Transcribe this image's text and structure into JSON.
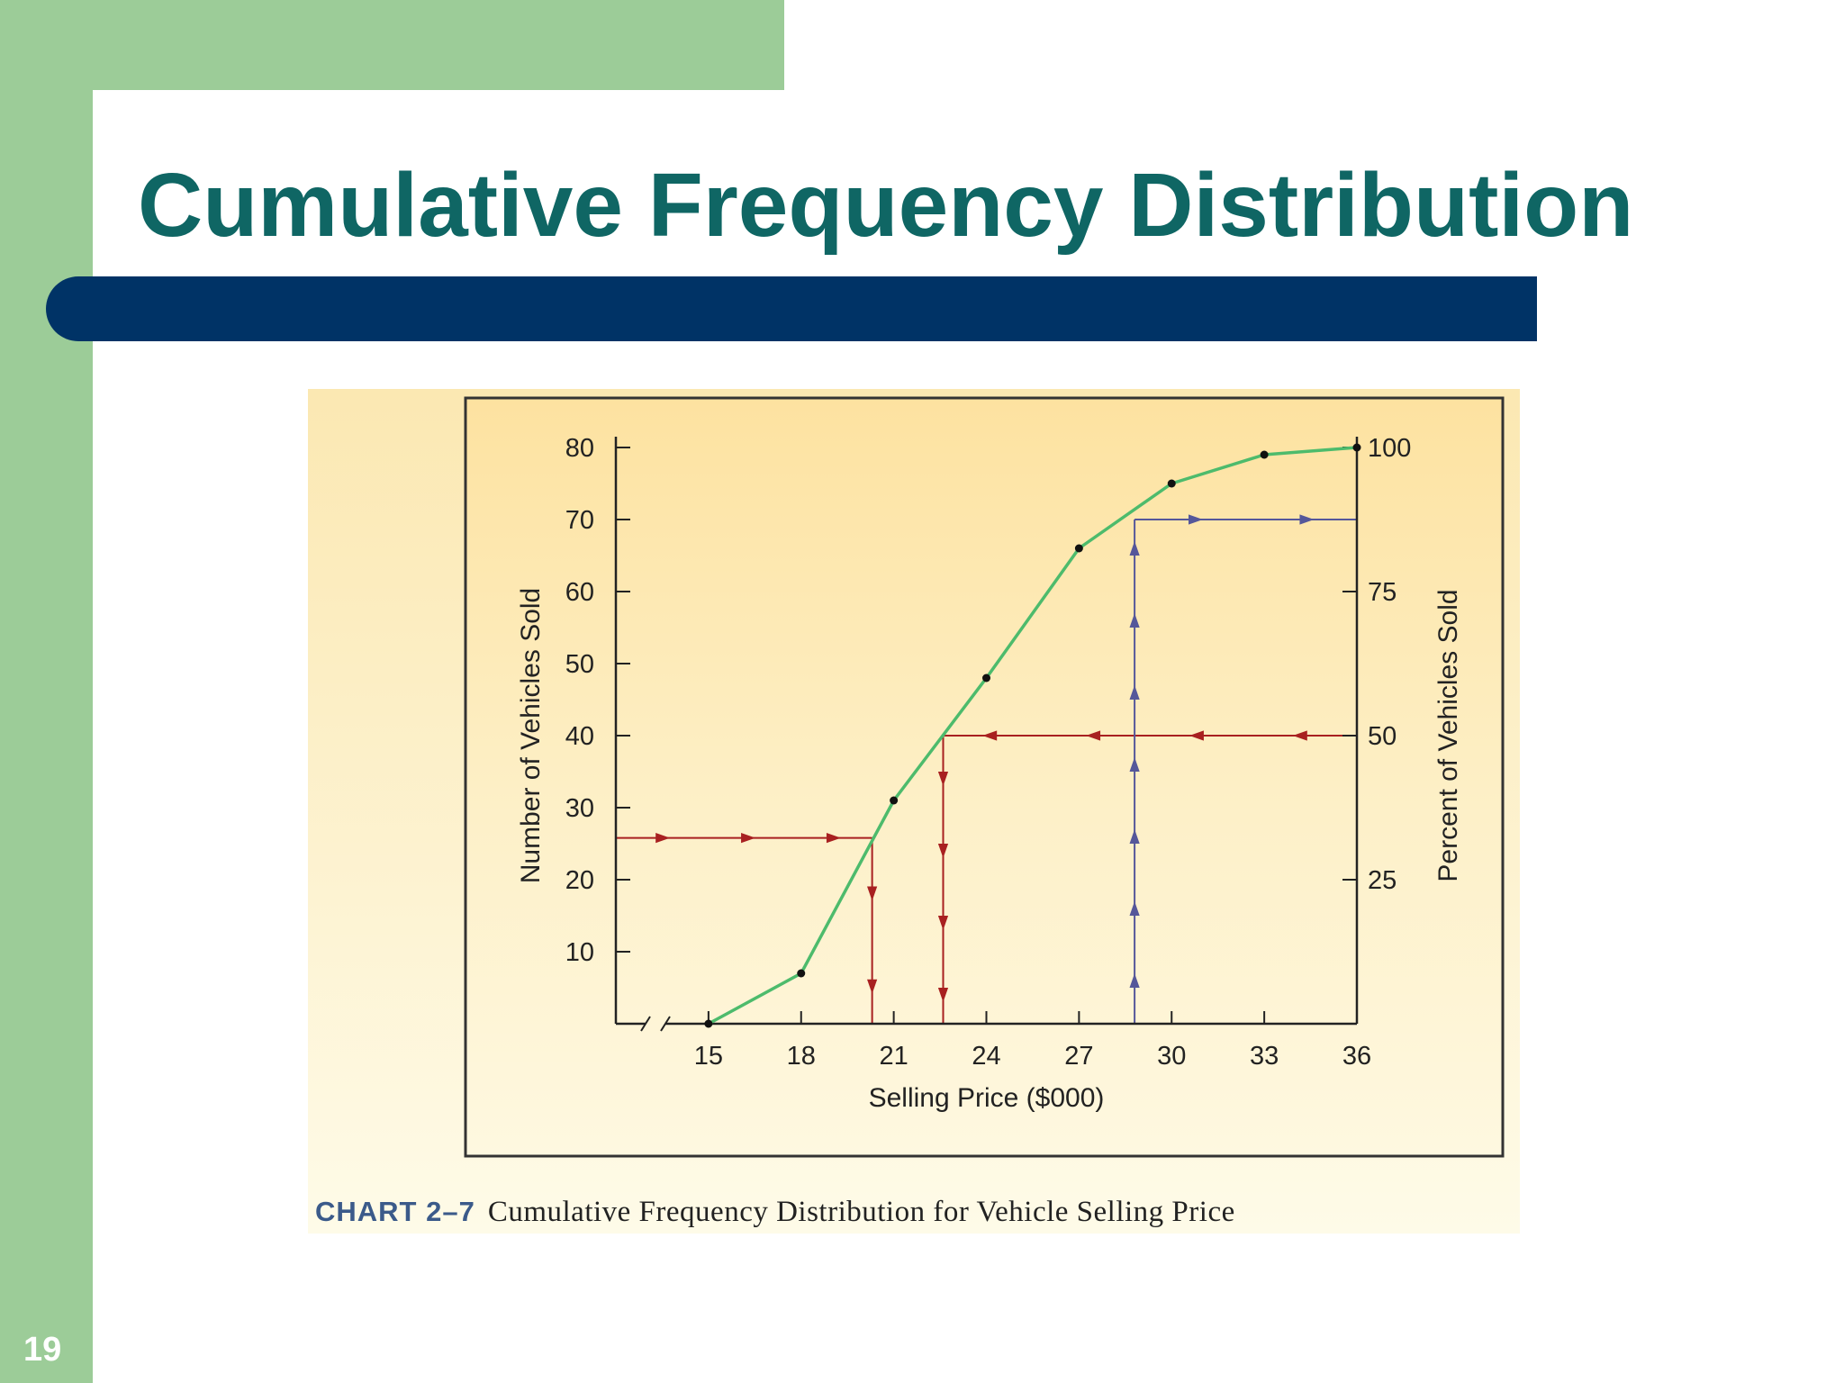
{
  "slide": {
    "title": "Cumulative Frequency Distribution",
    "number": "19"
  },
  "figure": {
    "caption_label": "CHART 2–7",
    "caption_text": "Cumulative Frequency Distribution for Vehicle Selling Price"
  },
  "colors": {
    "side_bar": "#9ccc98",
    "title_text": "#0f6664",
    "title_rule": "#003366",
    "curve": "#4dbb6c",
    "red_guides": "#a82020",
    "blue_guides": "#55579a"
  },
  "chart_data": {
    "type": "line",
    "title": "",
    "xlabel": "Selling Price ($000)",
    "ylabel": "Number of Vehicles Sold",
    "y2label": "Percent of Vehicles Sold",
    "x_ticks": [
      15,
      18,
      21,
      24,
      27,
      30,
      33,
      36
    ],
    "y_ticks": [
      10,
      20,
      30,
      40,
      50,
      60,
      70,
      80
    ],
    "y2_ticks": [
      25,
      50,
      75,
      100
    ],
    "xlim": [
      12,
      36
    ],
    "ylim": [
      0,
      80
    ],
    "y2lim": [
      0,
      100
    ],
    "axis_break_on_x": true,
    "series": [
      {
        "x": [
          15,
          18,
          21,
          24,
          27,
          30,
          33,
          36
        ],
        "y": [
          0,
          7,
          31,
          48,
          66,
          75,
          79,
          80
        ]
      }
    ],
    "guides": [
      {
        "kind": "horizontal",
        "color": "red",
        "y": 25.8,
        "x_from": 12,
        "x_to": 20.3,
        "arrow": "right"
      },
      {
        "kind": "vertical",
        "color": "red",
        "x": 20.3,
        "y_from": 25.8,
        "y_to": 0,
        "arrow": "down"
      },
      {
        "kind": "horizontal",
        "color": "red",
        "y": 40,
        "x_from": 36,
        "x_to": 22.6,
        "arrow": "left"
      },
      {
        "kind": "vertical",
        "color": "red",
        "x": 22.6,
        "y_from": 40,
        "y_to": 0,
        "arrow": "down"
      },
      {
        "kind": "vertical",
        "color": "blue",
        "x": 28.8,
        "y_from": 0,
        "y_to": 70,
        "arrow": "up"
      },
      {
        "kind": "horizontal",
        "color": "blue",
        "y": 70,
        "x_from": 28.8,
        "x_to": 36,
        "arrow": "right"
      }
    ]
  }
}
